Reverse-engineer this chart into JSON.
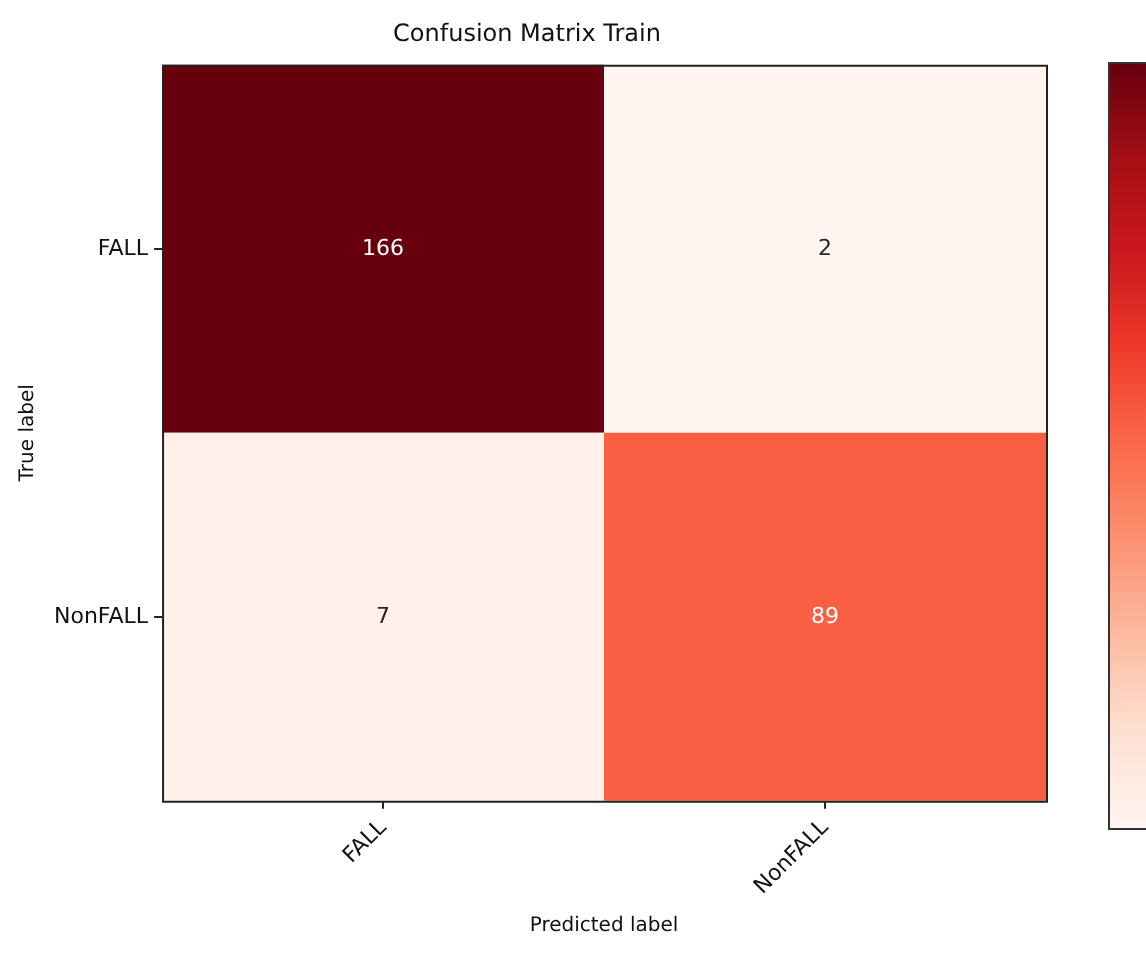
{
  "chart_data": {
    "type": "heatmap",
    "title": "Confusion Matrix Train",
    "xlabel": "Predicted label",
    "ylabel": "True label",
    "data_labels": true,
    "categories": [
      "FALL",
      "NonFALL"
    ],
    "y_categories": [
      "FALL",
      "NonFALL"
    ],
    "cells": [
      [
        166,
        2
      ],
      [
        7,
        89
      ]
    ]
  }
}
